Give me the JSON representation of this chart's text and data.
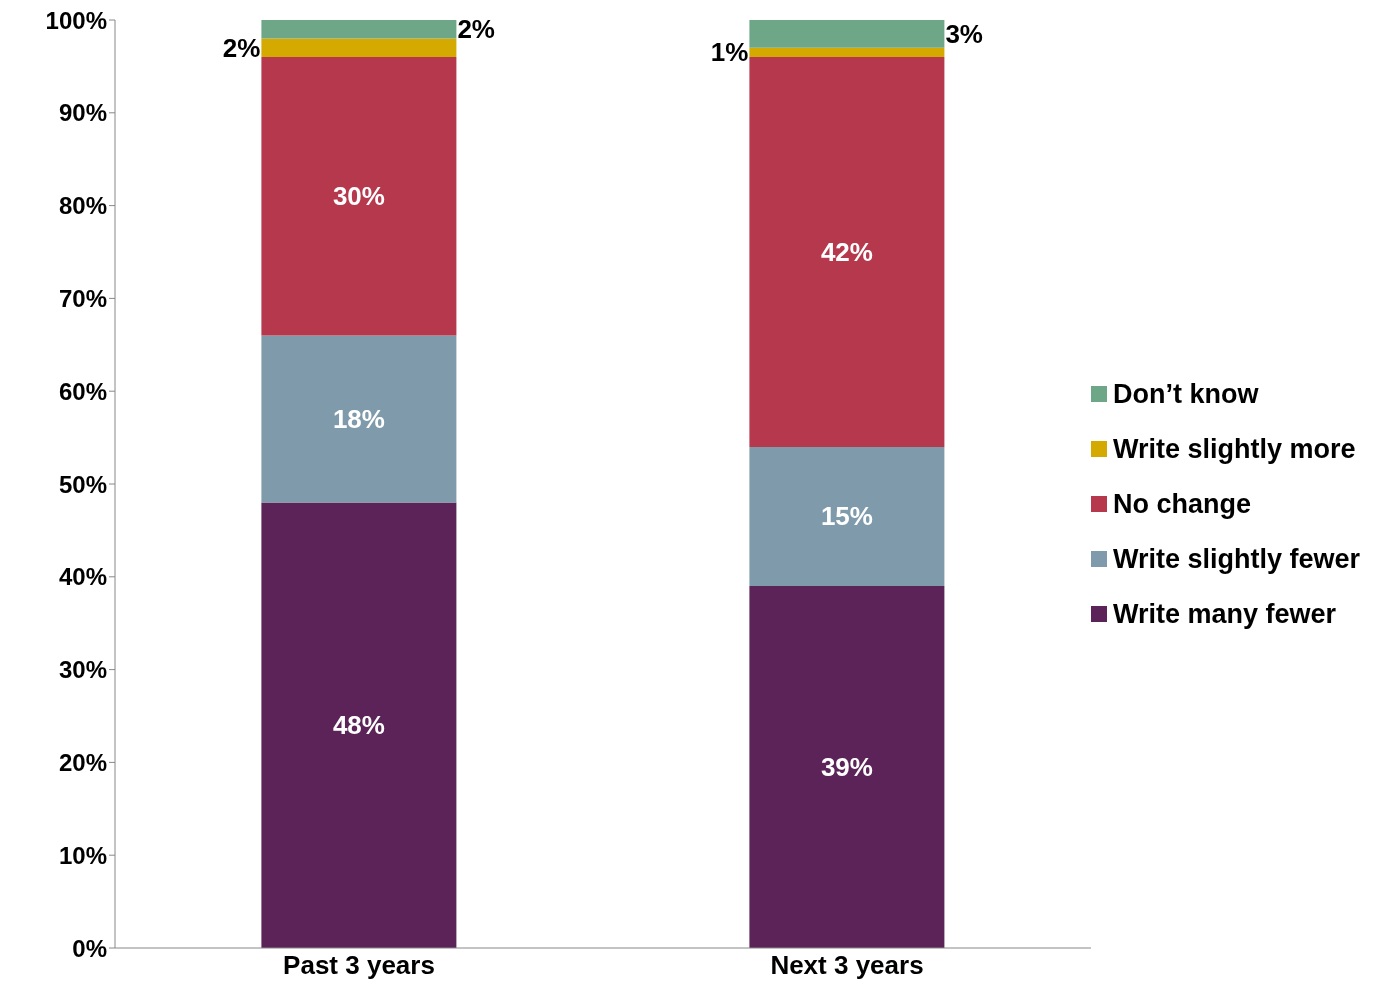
{
  "chart_data": {
    "type": "bar",
    "stacked": true,
    "categories": [
      "Past 3 years",
      "Next 3 years"
    ],
    "series": [
      {
        "name": "Write many fewer",
        "color": "#5b2357",
        "values": [
          48,
          39
        ],
        "value_labels": [
          "48%",
          "39%"
        ]
      },
      {
        "name": "Write slightly fewer",
        "color": "#7f9bab",
        "values": [
          18,
          15
        ],
        "value_labels": [
          "18%",
          "15%"
        ]
      },
      {
        "name": "No change",
        "color": "#b5384d",
        "values": [
          30,
          42
        ],
        "value_labels": [
          "30%",
          "42%"
        ]
      },
      {
        "name": "Write slightly more",
        "color": "#d4a900",
        "values": [
          2,
          1
        ],
        "value_labels": [
          "2%",
          "1%"
        ]
      },
      {
        "name": "Don’t know",
        "color": "#6ea787",
        "values": [
          2,
          3
        ],
        "value_labels": [
          "2%",
          "3%"
        ]
      }
    ],
    "ylim": [
      0,
      100
    ],
    "yticks": [
      {
        "value": 0,
        "label": "0%"
      },
      {
        "value": 10,
        "label": "10%"
      },
      {
        "value": 20,
        "label": "20%"
      },
      {
        "value": 30,
        "label": "30%"
      },
      {
        "value": 40,
        "label": "40%"
      },
      {
        "value": 50,
        "label": "50%"
      },
      {
        "value": 60,
        "label": "60%"
      },
      {
        "value": 70,
        "label": "70%"
      },
      {
        "value": 80,
        "label": "80%"
      },
      {
        "value": 90,
        "label": "90%"
      },
      {
        "value": 100,
        "label": "100%"
      }
    ],
    "grid": false,
    "legend": "right"
  }
}
